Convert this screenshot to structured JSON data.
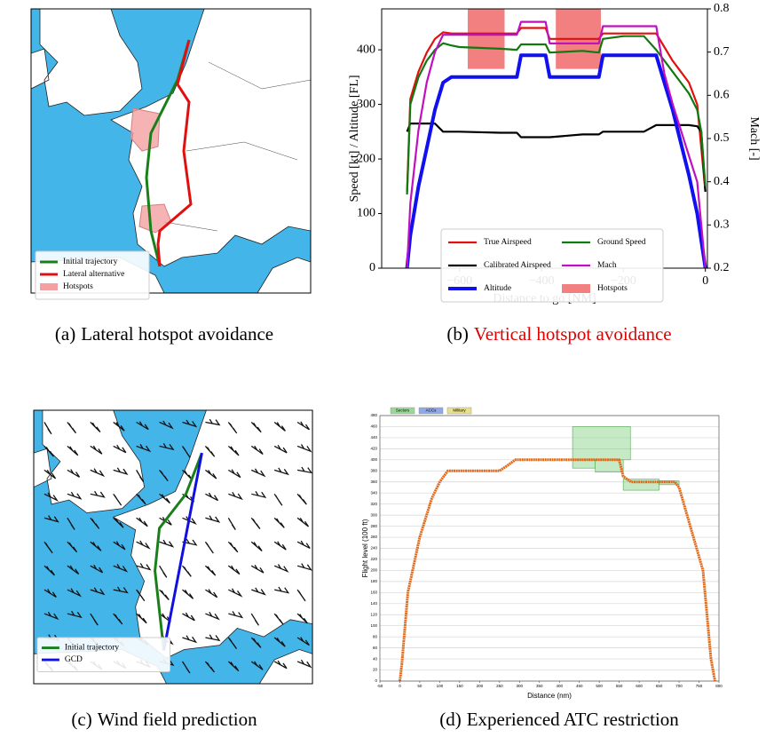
{
  "maps": [
    {
      "legend": [
        {
          "name": "Initial trajectory",
          "color": "#1a7f1a"
        },
        {
          "name": "Lateral alternative",
          "color": "#e01010"
        },
        {
          "name": "Hotspots",
          "color": "#f4a0a0"
        }
      ],
      "caption_label": "(a)",
      "caption": "Lateral hotspot avoidance"
    },
    {
      "legend": [
        {
          "name": "Initial trajectory",
          "color": "#1a7f1a"
        },
        {
          "name": "GCD",
          "color": "#1010e0"
        }
      ],
      "caption_label": "(c)",
      "caption": "Wind field prediction"
    }
  ],
  "chart_data": [
    {
      "type": "line",
      "caption_label": "(b)",
      "caption": "Vertical hotspot avoidance",
      "caption_color": "#e00000",
      "xlabel": "Distance to go [NM]",
      "ylabel": "Speed [kt] / Altitude [FL]",
      "y2label": "Mach [-]",
      "x": [
        -728,
        -720,
        -700,
        -680,
        -660,
        -640,
        -620,
        -600,
        -500,
        -460,
        -450,
        -400,
        -390,
        -380,
        -300,
        -260,
        -250,
        -200,
        -150,
        -120,
        -100,
        -80,
        -60,
        -40,
        -20,
        -10,
        0
      ],
      "series": [
        {
          "name": "True Airspeed",
          "color": "#e01010",
          "values": [
            140,
            310,
            360,
            395,
            420,
            432,
            430,
            430,
            430,
            430,
            440,
            440,
            440,
            420,
            420,
            420,
            430,
            430,
            430,
            430,
            405,
            380,
            360,
            340,
            300,
            220,
            140
          ]
        },
        {
          "name": "Calibrated Airspeed",
          "color": "#000000",
          "values": [
            250,
            265,
            265,
            265,
            265,
            250,
            250,
            250,
            248,
            248,
            240,
            240,
            240,
            240,
            245,
            245,
            250,
            250,
            250,
            262,
            262,
            262,
            262,
            262,
            260,
            250,
            140
          ]
        },
        {
          "name": "Altitude",
          "color": "#1010f0",
          "values": [
            0,
            60,
            150,
            220,
            290,
            340,
            350,
            350,
            350,
            350,
            390,
            390,
            390,
            350,
            350,
            350,
            390,
            390,
            390,
            390,
            340,
            290,
            230,
            170,
            100,
            50,
            0
          ]
        },
        {
          "name": "Ground Speed",
          "color": "#107a10",
          "values": [
            135,
            300,
            350,
            380,
            400,
            412,
            408,
            405,
            402,
            400,
            410,
            410,
            410,
            395,
            398,
            395,
            420,
            425,
            425,
            400,
            380,
            360,
            340,
            320,
            290,
            250,
            150
          ]
        },
        {
          "name": "Mach",
          "color": "#c010c0",
          "axis": "y2",
          "values": [
            0.2,
            0.35,
            0.52,
            0.63,
            0.7,
            0.74,
            0.74,
            0.74,
            0.74,
            0.74,
            0.77,
            0.77,
            0.77,
            0.72,
            0.72,
            0.72,
            0.76,
            0.76,
            0.76,
            0.76,
            0.65,
            0.58,
            0.52,
            0.46,
            0.4,
            0.3,
            0.2
          ]
        }
      ],
      "hotspots": {
        "name": "Hotspots",
        "color": "#f06060",
        "regions": [
          {
            "x": [
              -580,
              -490
            ],
            "y": [
              365,
              475
            ]
          },
          {
            "x": [
              -365,
              -255
            ],
            "y": [
              365,
              475
            ]
          }
        ]
      },
      "xlim": [
        -790,
        5
      ],
      "ylim": [
        0,
        475
      ],
      "y2lim": [
        0.2,
        0.8
      ],
      "xticks": [
        {
          "value": -600,
          "label": "−600"
        },
        {
          "value": -400,
          "label": "−400"
        },
        {
          "value": -200,
          "label": "−200"
        },
        0
      ],
      "yticks": [
        0,
        100,
        200,
        300,
        400
      ],
      "y2ticks": [
        0.2,
        0.3,
        0.4,
        0.5,
        0.6,
        0.7,
        0.8
      ]
    },
    {
      "type": "line",
      "caption_label": "(d)",
      "caption": "Experienced ATC restriction",
      "xlabel": "Distance (nm)",
      "ylabel": "Flight level (100 ft)",
      "legend": [
        {
          "name": "Sectors",
          "color": "#9ad89a"
        },
        {
          "name": "ACCs",
          "color": "#8fa8e8"
        },
        {
          "name": "Military",
          "color": "#e8e08a"
        }
      ],
      "x": [
        0,
        5,
        20,
        50,
        80,
        100,
        120,
        250,
        270,
        290,
        550,
        560,
        580,
        690,
        700,
        760,
        780,
        790
      ],
      "values": [
        0,
        30,
        160,
        260,
        330,
        360,
        380,
        380,
        390,
        400,
        400,
        370,
        360,
        360,
        350,
        200,
        40,
        0
      ],
      "color": "#e06a1a",
      "restrictions": {
        "color": "#7fd07f",
        "regions": [
          {
            "x": [
              433,
              578
            ],
            "y": [
              400,
              460
            ]
          },
          {
            "x": [
              433,
              490
            ],
            "y": [
              385,
              400
            ]
          },
          {
            "x": [
              490,
              560
            ],
            "y": [
              378,
              400
            ]
          },
          {
            "x": [
              560,
              650
            ],
            "y": [
              345,
              365
            ]
          },
          {
            "x": [
              650,
              700
            ],
            "y": [
              355,
              362
            ]
          }
        ]
      },
      "xlim": [
        -50,
        800
      ],
      "ylim": [
        0,
        480
      ],
      "xticks": [
        -50,
        0,
        50,
        100,
        150,
        200,
        250,
        300,
        350,
        400,
        450,
        500,
        550,
        600,
        650,
        700,
        750,
        800
      ],
      "yticks": [
        0,
        20,
        40,
        60,
        80,
        100,
        120,
        140,
        160,
        180,
        200,
        220,
        240,
        260,
        280,
        300,
        320,
        340,
        360,
        380,
        400,
        420,
        440,
        460,
        480
      ],
      "grid": true
    }
  ]
}
